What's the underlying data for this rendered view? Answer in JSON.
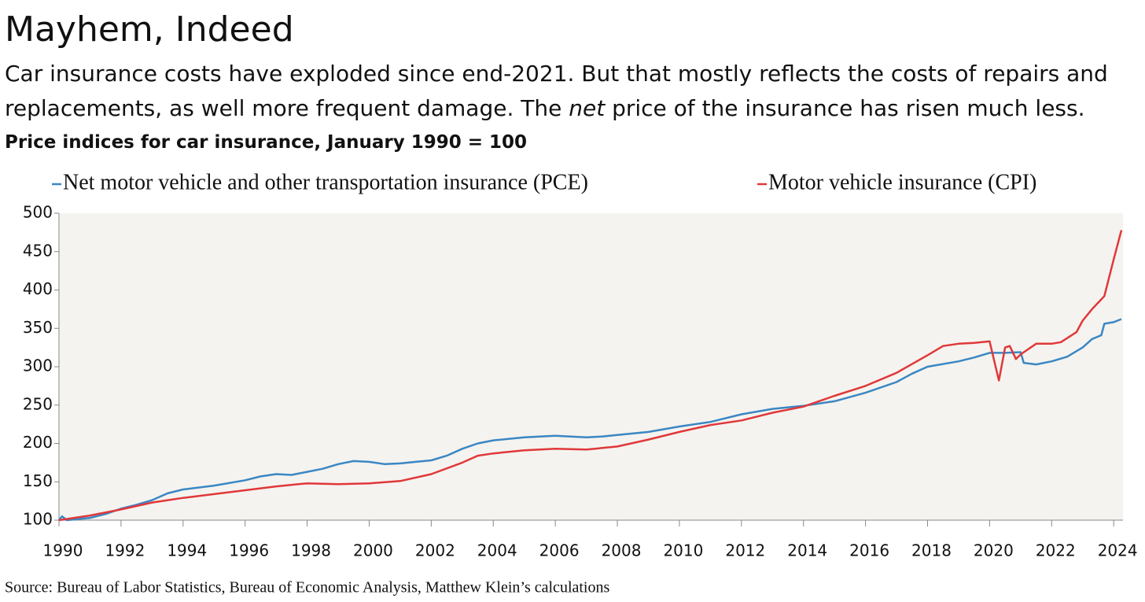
{
  "chart_data": {
    "type": "line",
    "title": "Mayhem, Indeed",
    "subtitle": [
      "Car insurance costs have exploded since end-2021. But that mostly reflects the costs of repairs and replacements, as well more frequent damage. The ",
      "net",
      " price of the insurance has risen much less."
    ],
    "chart_title": "Price indices for car insurance, January 1990 = 100",
    "source": "Source: Bureau of Labor Statistics, Bureau of Economic Analysis, Matthew Klein’s calculations",
    "xlim": [
      1990,
      2024.3
    ],
    "xticks": [
      1990,
      1992,
      1994,
      1996,
      1998,
      2000,
      2002,
      2004,
      2006,
      2008,
      2010,
      2012,
      2014,
      2016,
      2018,
      2020,
      2022,
      2024
    ],
    "ylim": [
      100,
      500
    ],
    "yticks": [
      100,
      150,
      200,
      250,
      300,
      350,
      400,
      450,
      500
    ],
    "background": "#f5f3ef",
    "series": [
      {
        "name": "Net motor vehicle and other transportation insurance (PCE)",
        "color": "#3a87c4",
        "x": [
          1990,
          1990.1,
          1990.25,
          1991,
          1991.5,
          1992,
          1992.5,
          1993,
          1993.5,
          1994,
          1995,
          1996,
          1996.5,
          1997,
          1997.5,
          1998,
          1998.5,
          1999,
          1999.5,
          2000,
          2000.5,
          2001,
          2001.5,
          2002,
          2002.5,
          2003,
          2003.5,
          2004,
          2005,
          2006,
          2007,
          2007.5,
          2008,
          2009,
          2010,
          2011,
          2012,
          2013,
          2014,
          2015,
          2016,
          2017,
          2017.5,
          2018,
          2019,
          2019.5,
          2020,
          2020.5,
          2021,
          2021.1,
          2021.5,
          2022,
          2022.5,
          2023,
          2023.3,
          2023.6,
          2023.7,
          2024,
          2024.25
        ],
        "values": [
          100,
          105,
          100,
          103,
          108,
          115,
          120,
          126,
          135,
          140,
          145,
          152,
          157,
          160,
          159,
          163,
          167,
          173,
          177,
          176,
          173,
          174,
          176,
          178,
          184,
          193,
          200,
          204,
          208,
          210,
          208,
          209,
          211,
          215,
          222,
          228,
          238,
          245,
          249,
          255,
          266,
          280,
          291,
          300,
          307,
          312,
          318,
          318,
          319,
          305,
          303,
          307,
          313,
          325,
          336,
          341,
          356,
          358,
          362
        ]
      },
      {
        "name": "Motor vehicle insurance (CPI)",
        "color": "#e0383a",
        "x": [
          1990,
          1991,
          1992,
          1993,
          1994,
          1995,
          1996,
          1997,
          1998,
          1999,
          2000,
          2001,
          2002,
          2003,
          2003.5,
          2004,
          2005,
          2006,
          2007,
          2008,
          2009,
          2010,
          2011,
          2012,
          2013,
          2014,
          2015,
          2016,
          2017,
          2018,
          2018.5,
          2019,
          2019.5,
          2020,
          2020.3,
          2020.5,
          2020.65,
          2020.85,
          2021,
          2021.5,
          2022,
          2022.3,
          2022.8,
          2023,
          2023.3,
          2023.7,
          2024,
          2024.25
        ],
        "values": [
          100,
          106,
          114,
          123,
          129,
          134,
          139,
          144,
          148,
          147,
          148,
          151,
          160,
          175,
          184,
          187,
          191,
          193,
          192,
          196,
          205,
          215,
          224,
          230,
          240,
          248,
          262,
          275,
          292,
          315,
          327,
          330,
          331,
          333,
          282,
          325,
          327,
          310,
          316,
          330,
          330,
          332,
          345,
          360,
          375,
          392,
          440,
          478
        ]
      }
    ]
  }
}
